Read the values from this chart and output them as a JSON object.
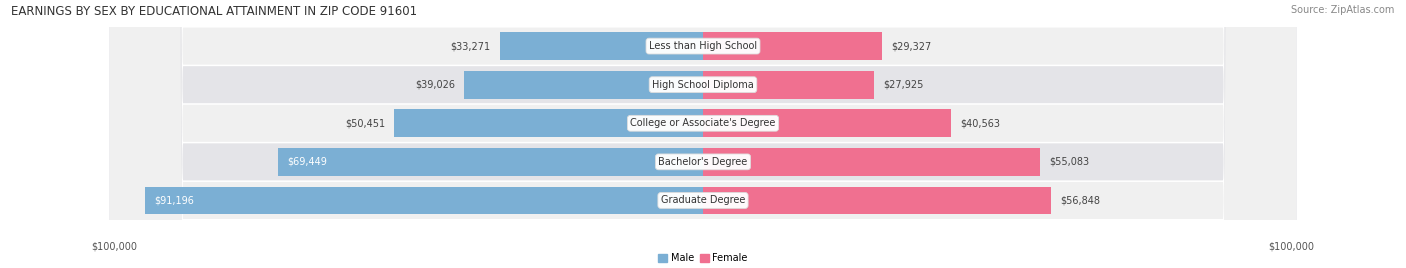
{
  "title": "EARNINGS BY SEX BY EDUCATIONAL ATTAINMENT IN ZIP CODE 91601",
  "source": "Source: ZipAtlas.com",
  "categories": [
    "Less than High School",
    "High School Diploma",
    "College or Associate's Degree",
    "Bachelor's Degree",
    "Graduate Degree"
  ],
  "male_values": [
    33271,
    39026,
    50451,
    69449,
    91196
  ],
  "female_values": [
    29327,
    27925,
    40563,
    55083,
    56848
  ],
  "male_color": "#7bafd4",
  "female_color": "#f07090",
  "max_value": 100000,
  "row_light": "#f0f0f0",
  "row_dark": "#e4e4e8",
  "bg_color": "#ffffff",
  "label_left": "$100,000",
  "label_right": "$100,000",
  "legend_male": "Male",
  "legend_female": "Female",
  "title_fontsize": 8.5,
  "source_fontsize": 7,
  "value_fontsize": 7,
  "cat_fontsize": 7,
  "bar_height": 0.72
}
